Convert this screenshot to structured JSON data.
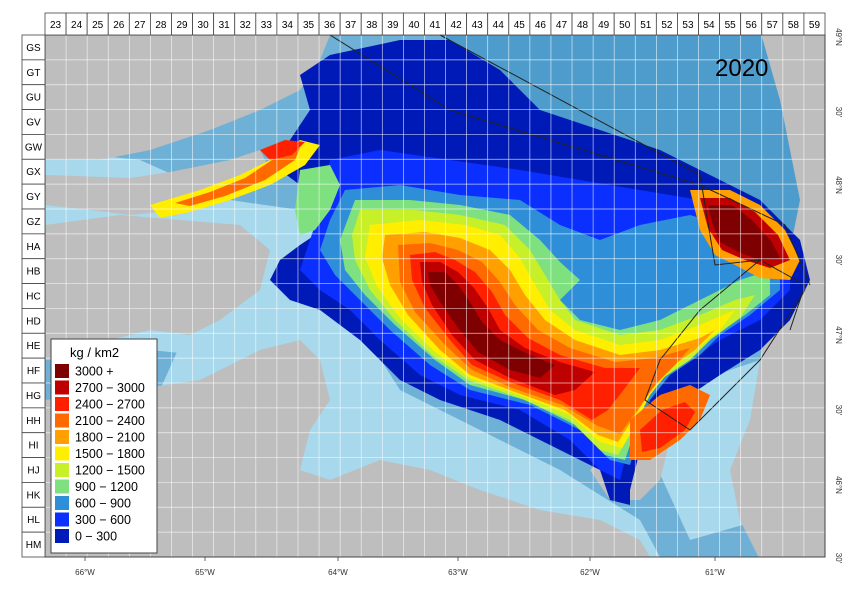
{
  "year": "2020",
  "columns": [
    "23",
    "24",
    "25",
    "26",
    "27",
    "28",
    "29",
    "30",
    "31",
    "32",
    "33",
    "34",
    "35",
    "36",
    "37",
    "38",
    "39",
    "40",
    "41",
    "42",
    "43",
    "44",
    "45",
    "46",
    "47",
    "48",
    "49",
    "50",
    "51",
    "52",
    "53",
    "54",
    "55",
    "56",
    "57",
    "58",
    "59"
  ],
  "rows": [
    "GS",
    "GT",
    "GU",
    "GV",
    "GW",
    "GX",
    "GY",
    "GZ",
    "HA",
    "HB",
    "HC",
    "HD",
    "HE",
    "HF",
    "HG",
    "HH",
    "HI",
    "HJ",
    "HK",
    "HL",
    "HM"
  ],
  "lon_labels": [
    "66°W",
    "65°W",
    "64°W",
    "63°W",
    "62°W",
    "61°W"
  ],
  "lat_labels": [
    "49°N",
    "30'",
    "30'",
    "48°N",
    "30'",
    "47°N",
    "30'",
    "46°N",
    "30'"
  ],
  "legend": {
    "title": "kg / km2",
    "entries": [
      {
        "label": "3000 +",
        "color": "#7f0000"
      },
      {
        "label": "2700 − 3000",
        "color": "#bf0000"
      },
      {
        "label": "2400 − 2700",
        "color": "#ff2000"
      },
      {
        "label": "2100 − 2400",
        "color": "#ff6a00"
      },
      {
        "label": "1800 − 2100",
        "color": "#ffa000"
      },
      {
        "label": "1500 − 1800",
        "color": "#ffee00"
      },
      {
        "label": "1200 − 1500",
        "color": "#c8f028"
      },
      {
        "label": "900 − 1200",
        "color": "#7ee07e"
      },
      {
        "label": "600 − 900",
        "color": "#2e8fd8"
      },
      {
        "label": "300 − 600",
        "color": "#0a2fff"
      },
      {
        "label": "0 − 300",
        "color": "#001ab8"
      }
    ]
  },
  "colors": {
    "land": "#bebebe",
    "shallow_water": "#a8d8ec",
    "deep_water": "#6fb0d6",
    "grid": "#ffffff"
  }
}
